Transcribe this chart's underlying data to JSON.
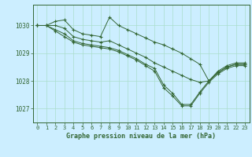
{
  "title": "Graphe pression niveau de la mer (hPa)",
  "bg_color": "#cceeff",
  "grid_color": "#aaddcc",
  "line_color": "#336633",
  "x_ticks": [
    0,
    1,
    2,
    3,
    4,
    5,
    6,
    7,
    8,
    9,
    10,
    11,
    12,
    13,
    14,
    15,
    16,
    17,
    18,
    19,
    20,
    21,
    22,
    23
  ],
  "ylim": [
    1026.5,
    1030.75
  ],
  "yticks": [
    1027,
    1028,
    1029,
    1030
  ],
  "series": [
    [
      1030.0,
      1030.0,
      1030.15,
      1030.2,
      1029.85,
      1029.7,
      1029.65,
      1029.6,
      1030.3,
      1030.0,
      1029.85,
      1029.7,
      1029.55,
      1029.4,
      1029.3,
      1029.15,
      1029.0,
      1028.8,
      1028.6,
      1028.0,
      1028.35,
      1028.55,
      1028.65,
      1028.65
    ],
    [
      1030.0,
      1030.0,
      1030.0,
      1029.9,
      1029.6,
      1029.5,
      1029.45,
      1029.4,
      1029.45,
      1029.3,
      1029.15,
      1029.0,
      1028.85,
      1028.65,
      1028.5,
      1028.35,
      1028.2,
      1028.05,
      1027.95,
      1028.0,
      1028.3,
      1028.5,
      1028.6,
      1028.6
    ],
    [
      1030.0,
      1030.0,
      1029.85,
      1029.7,
      1029.45,
      1029.35,
      1029.3,
      1029.25,
      1029.2,
      1029.1,
      1028.95,
      1028.8,
      1028.6,
      1028.45,
      1027.85,
      1027.55,
      1027.15,
      1027.15,
      1027.6,
      1028.0,
      1028.3,
      1028.5,
      1028.6,
      1028.6
    ],
    [
      1030.0,
      1030.0,
      1029.8,
      1029.6,
      1029.4,
      1029.3,
      1029.25,
      1029.2,
      1029.15,
      1029.05,
      1028.9,
      1028.75,
      1028.55,
      1028.35,
      1027.75,
      1027.45,
      1027.1,
      1027.1,
      1027.55,
      1027.95,
      1028.25,
      1028.45,
      1028.55,
      1028.55
    ]
  ]
}
